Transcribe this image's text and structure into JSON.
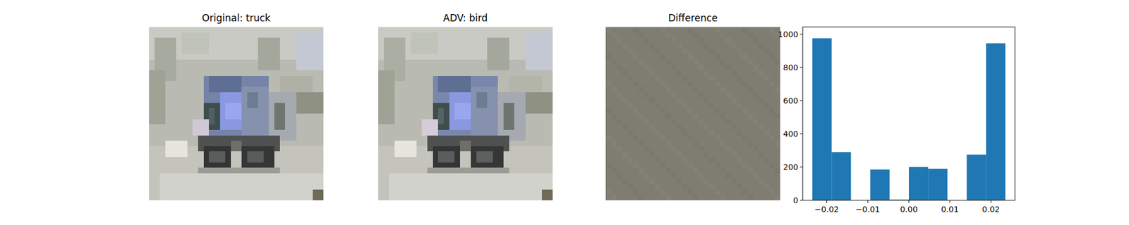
{
  "images": [
    {
      "title": "Original: truck"
    },
    {
      "title": "ADV: bird"
    },
    {
      "title": "Difference"
    }
  ],
  "chart_data": {
    "type": "histogram",
    "bins": [
      -0.0235,
      -0.0188,
      -0.0141,
      -0.0094,
      -0.0047,
      0,
      0.0047,
      0.0094,
      0.0141,
      0.0188,
      0.0235
    ],
    "values": [
      975,
      290,
      0,
      185,
      4,
      200,
      190,
      0,
      275,
      945
    ],
    "color": "#1f77b4",
    "xlim": [
      -0.02585,
      0.02585
    ],
    "ylim": [
      0,
      1043
    ],
    "xticks": [
      {
        "value": -0.02,
        "label": "−0.02"
      },
      {
        "value": -0.01,
        "label": "−0.01"
      },
      {
        "value": 0,
        "label": "0.00"
      },
      {
        "value": 0.01,
        "label": "0.01"
      },
      {
        "value": 0.02,
        "label": "0.02"
      }
    ],
    "yticks": [
      0,
      200,
      400,
      600,
      800,
      1000
    ],
    "grid": false
  }
}
